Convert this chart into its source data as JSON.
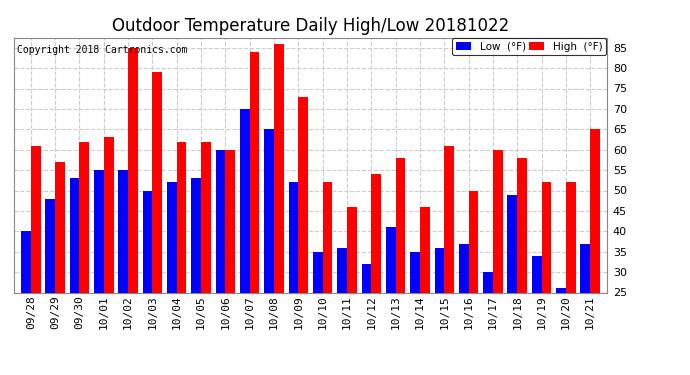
{
  "title": "Outdoor Temperature Daily High/Low 20181022",
  "copyright": "Copyright 2018 Cartronics.com",
  "categories": [
    "09/28",
    "09/29",
    "09/30",
    "10/01",
    "10/02",
    "10/03",
    "10/04",
    "10/05",
    "10/06",
    "10/07",
    "10/08",
    "10/09",
    "10/10",
    "10/11",
    "10/12",
    "10/13",
    "10/14",
    "10/15",
    "10/16",
    "10/17",
    "10/18",
    "10/19",
    "10/20",
    "10/21"
  ],
  "high": [
    61,
    57,
    62,
    63,
    85,
    79,
    62,
    62,
    60,
    84,
    86,
    73,
    52,
    46,
    54,
    58,
    46,
    61,
    50,
    60,
    58,
    52,
    52,
    65
  ],
  "low": [
    40,
    48,
    53,
    55,
    55,
    50,
    52,
    53,
    60,
    70,
    65,
    52,
    35,
    36,
    32,
    41,
    35,
    36,
    37,
    30,
    49,
    34,
    26,
    37
  ],
  "high_color": "#ff0000",
  "low_color": "#0000ff",
  "ymin": 25.0,
  "ylim": [
    25.0,
    87.5
  ],
  "yticks": [
    25.0,
    30.0,
    35.0,
    40.0,
    45.0,
    50.0,
    55.0,
    60.0,
    65.0,
    70.0,
    75.0,
    80.0,
    85.0
  ],
  "background_color": "#ffffff",
  "plot_bg_color": "#ffffff",
  "grid_color": "#cccccc",
  "title_fontsize": 12,
  "tick_fontsize": 8,
  "bar_width": 0.4,
  "legend_low_label": "Low  (°F)",
  "legend_high_label": "High  (°F)"
}
